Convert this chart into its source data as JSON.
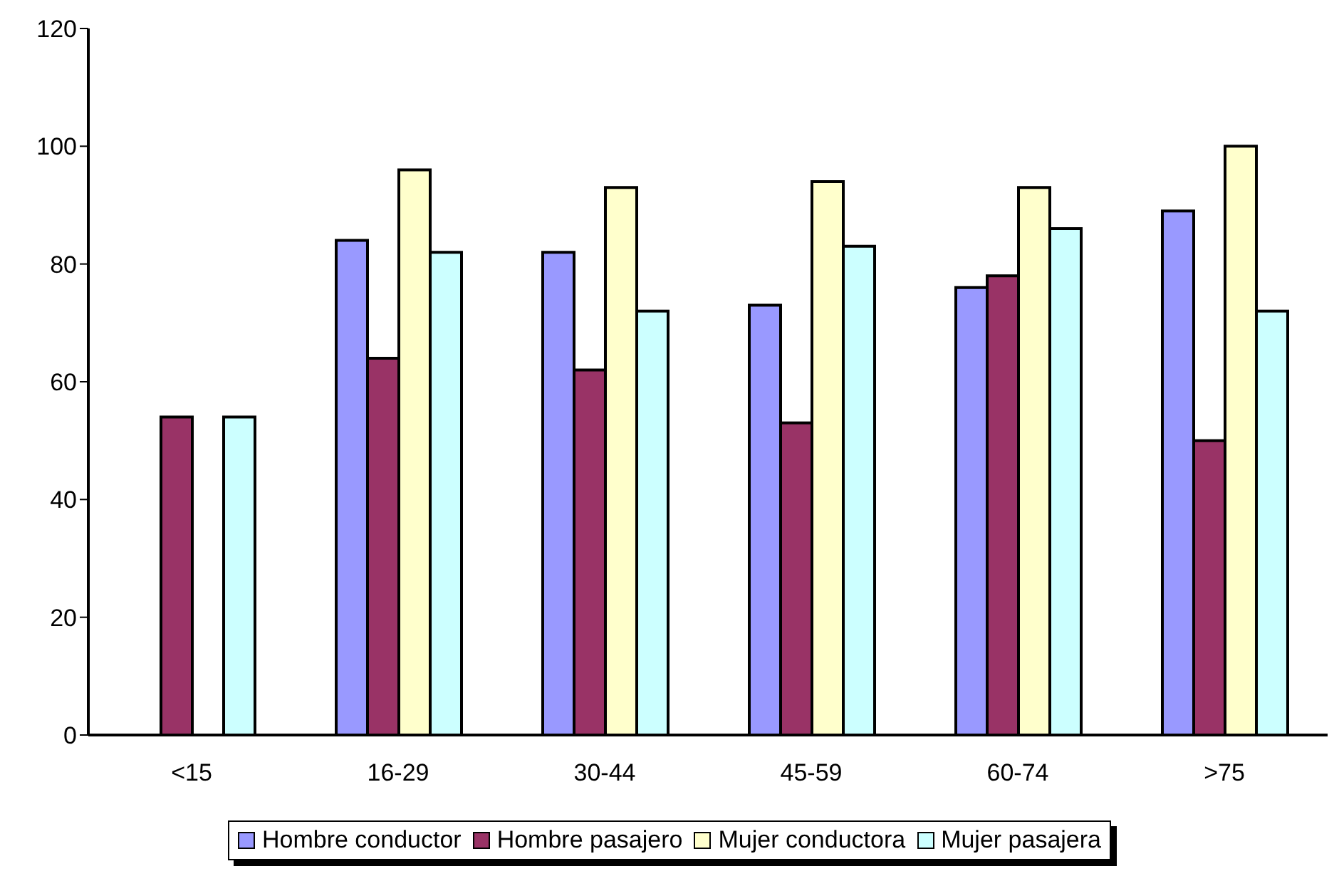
{
  "chart_data": {
    "type": "bar",
    "categories": [
      "<15",
      "16-29",
      "30-44",
      "45-59",
      "60-74",
      ">75"
    ],
    "series": [
      {
        "name": "Hombre conductor",
        "color": "#9999ff",
        "values": [
          null,
          84,
          82,
          73,
          76,
          89
        ]
      },
      {
        "name": "Hombre pasajero",
        "color": "#993366",
        "values": [
          54,
          64,
          62,
          53,
          78,
          50
        ]
      },
      {
        "name": "Mujer conductora",
        "color": "#ffffcc",
        "values": [
          null,
          96,
          93,
          94,
          93,
          100
        ]
      },
      {
        "name": "Mujer pasajera",
        "color": "#ccffff",
        "values": [
          54,
          82,
          72,
          83,
          86,
          72
        ]
      }
    ],
    "ylim": [
      0,
      120
    ],
    "yticks": [
      0,
      20,
      40,
      60,
      80,
      100,
      120
    ],
    "legend": "bottom"
  }
}
